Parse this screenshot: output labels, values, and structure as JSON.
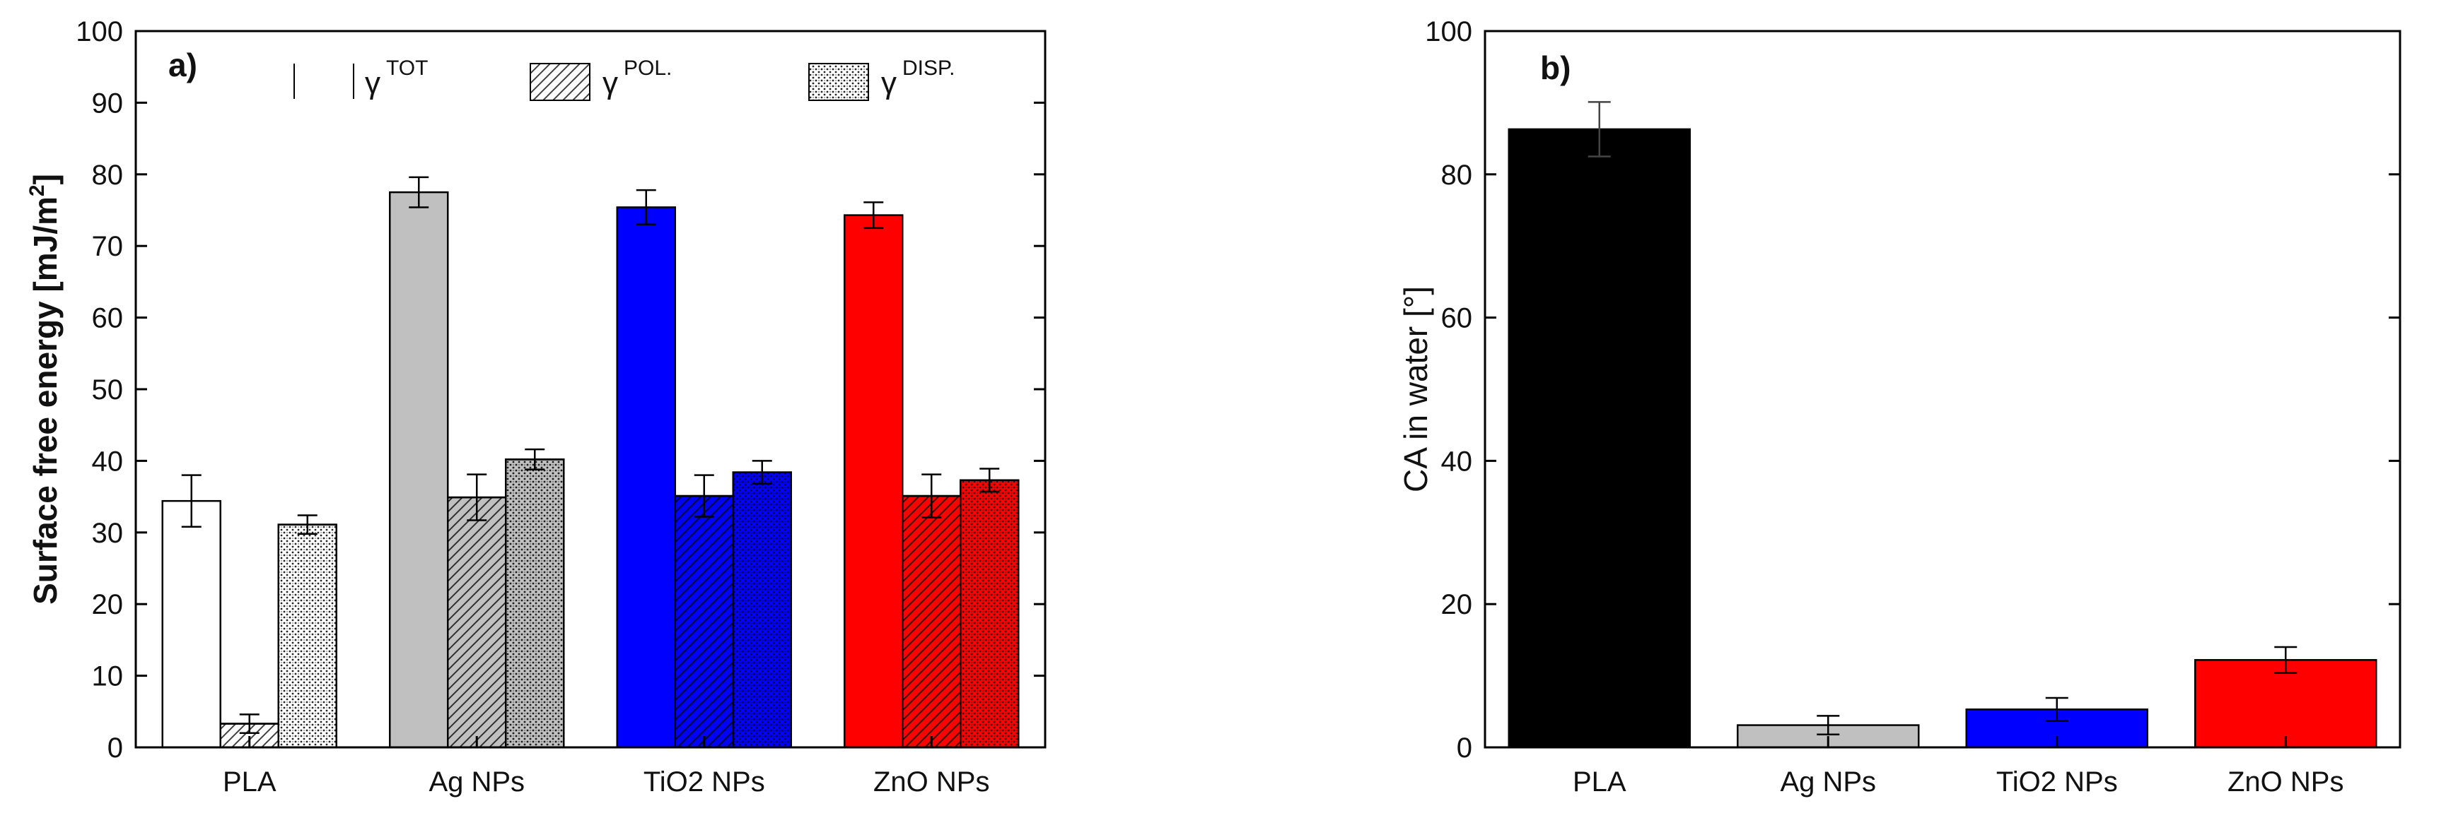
{
  "chart_data": [
    {
      "panel": "a)",
      "type": "bar",
      "ylabel": "Surface free energy [mJ/m",
      "ylabel_sup": "2",
      "ylabel_end": "]",
      "ylim": [
        0,
        100
      ],
      "yticks": [
        0,
        10,
        20,
        30,
        40,
        50,
        60,
        70,
        80,
        90,
        100
      ],
      "categories": [
        "PLA",
        "Ag NPs",
        "TiO2 NPs",
        "ZnO NPs"
      ],
      "category_colors": [
        "#ffffff",
        "#c0c0c0",
        "#0000ff",
        "#ff0000"
      ],
      "legend": [
        {
          "symbol": "γ",
          "sup": "TOT",
          "pattern": "none"
        },
        {
          "symbol": "γ",
          "sup": "POL.",
          "pattern": "hatch"
        },
        {
          "symbol": "γ",
          "sup": "DISP.",
          "pattern": "dots"
        }
      ],
      "series": [
        {
          "name": "γ TOT",
          "pattern": "none",
          "values": [
            34.4,
            77.5,
            75.4,
            74.3
          ],
          "errors": [
            3.6,
            2.1,
            2.4,
            1.8
          ]
        },
        {
          "name": "γ POL.",
          "pattern": "hatch",
          "values": [
            3.3,
            34.9,
            35.1,
            35.1
          ],
          "errors": [
            1.3,
            3.2,
            2.9,
            3.0
          ]
        },
        {
          "name": "γ DISP.",
          "pattern": "dots",
          "values": [
            31.1,
            40.2,
            38.4,
            37.3
          ],
          "errors": [
            1.3,
            1.4,
            1.6,
            1.6
          ]
        }
      ]
    },
    {
      "panel": "b)",
      "type": "bar",
      "ylabel": "CA in water [°]",
      "ylim": [
        0,
        100
      ],
      "yticks": [
        0,
        20,
        40,
        60,
        80,
        100
      ],
      "categories": [
        "PLA",
        "Ag NPs",
        "TiO2 NPs",
        "ZnO NPs"
      ],
      "category_colors": [
        "#000000",
        "#c0c0c0",
        "#0000ff",
        "#ff0000"
      ],
      "values": [
        86.3,
        3.1,
        5.3,
        12.2
      ],
      "errors": [
        3.8,
        1.3,
        1.6,
        1.8
      ]
    }
  ]
}
